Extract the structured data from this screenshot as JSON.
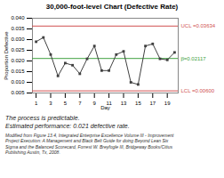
{
  "chart_data": {
    "type": "line",
    "title": "30,000-foot-level Chart (Defective Rate)",
    "xlabel": "Day",
    "ylabel": "Proportion Defective",
    "x": [
      1,
      2,
      3,
      4,
      5,
      6,
      7,
      8,
      9,
      10,
      11,
      12,
      13,
      14,
      15,
      16,
      17,
      18,
      19,
      20
    ],
    "values": [
      0.029,
      0.031,
      0.023,
      0.013,
      0.019,
      0.018,
      0.014,
      0.021,
      0.027,
      0.0155,
      0.0155,
      0.023,
      0.0245,
      0.01,
      0.009,
      0.027,
      0.028,
      0.021,
      0.0205,
      0.024
    ],
    "color": "#404040",
    "marker": "square",
    "grid": false,
    "xlim": [
      0.5,
      20.5
    ],
    "xticks": [
      1,
      3,
      5,
      7,
      9,
      11,
      13,
      15,
      17,
      19
    ],
    "ylim": [
      0.005,
      0.04
    ],
    "yticks": [
      0.005,
      {
        "value": 0.01,
        "label": "0.010"
      },
      0.015,
      {
        "value": 0.02,
        "label": "0.020"
      },
      0.025,
      {
        "value": 0.03,
        "label": "0.030"
      },
      0.035,
      {
        "value": 0.04,
        "label": "0.040"
      }
    ],
    "reference_lines": [
      {
        "value": 0.03634,
        "label": "UCL =0.03634",
        "color": "#d05050"
      },
      {
        "value": 0.02117,
        "label": "p̅=0.02117",
        "color": "#40a040"
      },
      {
        "value": 0.006,
        "label": "LCL =0.00600",
        "color": "#d05050"
      }
    ],
    "notes": [
      "The process is predictable.",
      "Estimated performance: 0.021 defective rate."
    ],
    "footnotes": [
      "Modified from Figure 13.4, Integrated  Enterprise  Excellence  Volume III - Improvement",
      "Project Execution: A Management and Black Belt Guide for doing Beyond Lean Six",
      "Sigma and the Balanced Scorecard, Forrest W. Breyfogle III, Bridgeway Books/Citius",
      "Publishing Austin, Tx, 2008."
    ]
  }
}
